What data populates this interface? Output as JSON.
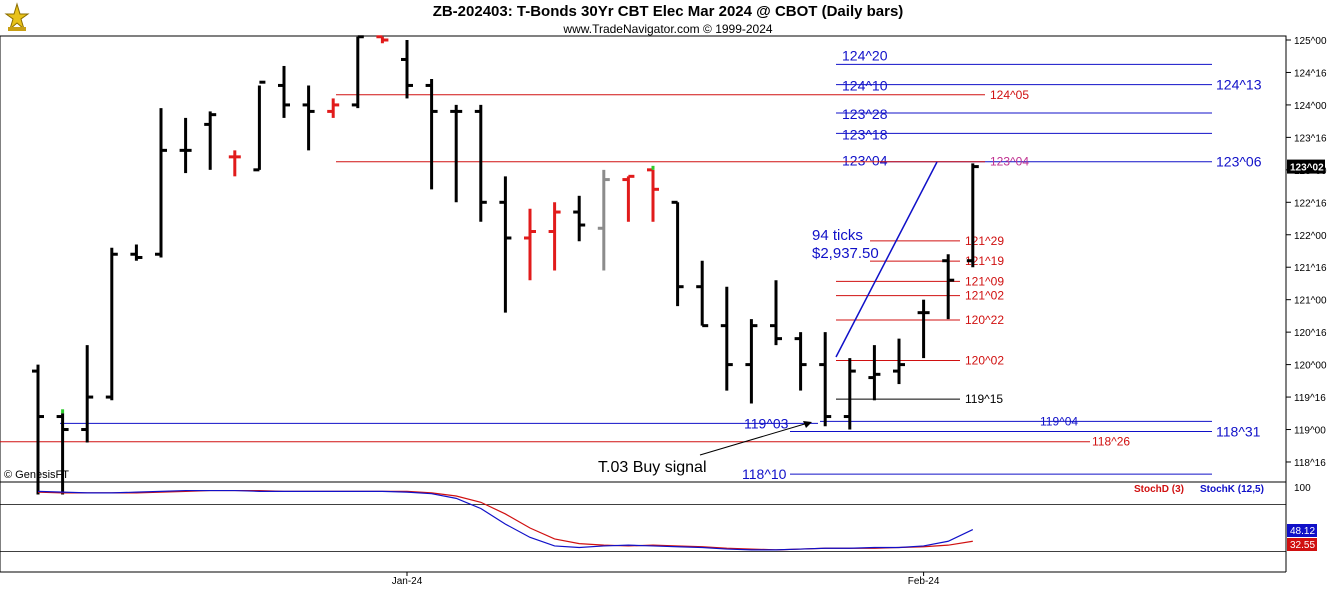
{
  "header": {
    "title": "ZB-202403:  T-Bonds 30Yr CBT Elec Mar 2024 @ CBOT  (Daily bars)",
    "subtitle": "www.TradeNavigator.com © 1999-2024"
  },
  "credit": "© GenesisFT",
  "colors": {
    "bar_default": "#000000",
    "bar_red": "#e11b1b",
    "bar_gray": "#8c8c8c",
    "bar_green": "#2ecc2e",
    "blue_level": "#1010c8",
    "red_level": "#d01010",
    "stoch_d": "#d01010",
    "stoch_k": "#1010c8",
    "price_tag_bg": "#000000",
    "k_tag_bg": "#1010c8",
    "d_tag_bg": "#d01010"
  },
  "chart_data": {
    "type": "ohlc",
    "price_axis_ticks": [
      "125^00",
      "124^16",
      "124^00",
      "123^16",
      "123^00",
      "122^16",
      "122^00",
      "121^16",
      "121^00",
      "120^16",
      "120^00",
      "119^16",
      "119^00",
      "118^16"
    ],
    "ylim": [
      118.0,
      125.0625
    ],
    "last_price_label": "123^02",
    "x_labels": [
      {
        "label": "Jan-24",
        "bar": 15
      },
      {
        "label": "Feb-24",
        "bar": 36
      }
    ],
    "bars": [
      {
        "h": 120.0,
        "l": 118.0,
        "o": 119.9,
        "c": 119.2,
        "color": "default"
      },
      {
        "h": 119.25,
        "l": 118.0,
        "o": 119.2,
        "c": 119.0,
        "color": "default",
        "marker": "green"
      },
      {
        "h": 120.3,
        "l": 118.8,
        "o": 119.0,
        "c": 119.5,
        "color": "default"
      },
      {
        "h": 121.8,
        "l": 119.45,
        "o": 119.5,
        "c": 121.7,
        "color": "default"
      },
      {
        "h": 121.85,
        "l": 121.6,
        "o": 121.7,
        "c": 121.65,
        "color": "default"
      },
      {
        "h": 123.95,
        "l": 121.65,
        "o": 121.7,
        "c": 123.3,
        "color": "default"
      },
      {
        "h": 123.8,
        "l": 122.95,
        "o": 123.3,
        "c": 123.3,
        "color": "default"
      },
      {
        "h": 123.9,
        "l": 123.0,
        "o": 123.7,
        "c": 123.85,
        "color": "default"
      },
      {
        "h": 123.3,
        "l": 122.9,
        "o": 123.2,
        "c": 123.2,
        "color": "red"
      },
      {
        "h": 124.3,
        "l": 123.0,
        "o": 123.0,
        "c": 124.35,
        "color": "default"
      },
      {
        "h": 124.6,
        "l": 123.8,
        "o": 124.3,
        "c": 124.0,
        "color": "default"
      },
      {
        "h": 124.3,
        "l": 123.3,
        "o": 124.0,
        "c": 123.9,
        "color": "default"
      },
      {
        "h": 124.1,
        "l": 123.8,
        "o": 123.9,
        "c": 124.0,
        "color": "red"
      },
      {
        "h": 125.05,
        "l": 123.95,
        "o": 124.0,
        "c": 125.05,
        "color": "default"
      },
      {
        "h": 125.05,
        "l": 124.95,
        "o": 125.05,
        "c": 125.0,
        "color": "red"
      },
      {
        "h": 125.0,
        "l": 124.1,
        "o": 124.7,
        "c": 124.3,
        "color": "default"
      },
      {
        "h": 124.4,
        "l": 122.7,
        "o": 124.3,
        "c": 123.9,
        "color": "default"
      },
      {
        "h": 124.0,
        "l": 122.5,
        "o": 123.9,
        "c": 123.9,
        "color": "default"
      },
      {
        "h": 124.0,
        "l": 122.2,
        "o": 123.9,
        "c": 122.5,
        "color": "default"
      },
      {
        "h": 122.9,
        "l": 120.8,
        "o": 122.5,
        "c": 121.95,
        "color": "default"
      },
      {
        "h": 122.4,
        "l": 121.3,
        "o": 121.95,
        "c": 122.05,
        "color": "red"
      },
      {
        "h": 122.5,
        "l": 121.45,
        "o": 122.05,
        "c": 122.35,
        "color": "red"
      },
      {
        "h": 122.6,
        "l": 121.9,
        "o": 122.35,
        "c": 122.15,
        "color": "default"
      },
      {
        "h": 123.0,
        "l": 121.45,
        "o": 122.1,
        "c": 122.85,
        "color": "gray"
      },
      {
        "h": 122.9,
        "l": 122.2,
        "o": 122.85,
        "c": 122.9,
        "color": "red"
      },
      {
        "h": 123.0,
        "l": 122.2,
        "o": 123.0,
        "c": 122.7,
        "color": "red",
        "marker": "green"
      },
      {
        "h": 122.5,
        "l": 120.9,
        "o": 122.5,
        "c": 121.2,
        "color": "default"
      },
      {
        "h": 121.6,
        "l": 120.6,
        "o": 121.2,
        "c": 120.6,
        "color": "default"
      },
      {
        "h": 121.2,
        "l": 119.6,
        "o": 120.6,
        "c": 120.0,
        "color": "default"
      },
      {
        "h": 120.7,
        "l": 119.4,
        "o": 120.0,
        "c": 120.6,
        "color": "default"
      },
      {
        "h": 121.3,
        "l": 120.3,
        "o": 120.6,
        "c": 120.4,
        "color": "default"
      },
      {
        "h": 120.5,
        "l": 119.6,
        "o": 120.4,
        "c": 120.0,
        "color": "default"
      },
      {
        "h": 120.5,
        "l": 119.05,
        "o": 120.0,
        "c": 119.2,
        "color": "default"
      },
      {
        "h": 120.1,
        "l": 119.0,
        "o": 119.2,
        "c": 119.9,
        "color": "default"
      },
      {
        "h": 120.3,
        "l": 119.45,
        "o": 119.8,
        "c": 119.85,
        "color": "default"
      },
      {
        "h": 120.4,
        "l": 119.7,
        "o": 119.9,
        "c": 120.0,
        "color": "default"
      },
      {
        "h": 121.0,
        "l": 120.1,
        "o": 120.8,
        "c": 120.8,
        "color": "default"
      },
      {
        "h": 121.7,
        "l": 120.7,
        "o": 121.6,
        "c": 121.3,
        "color": "default"
      },
      {
        "h": 123.1,
        "l": 121.5,
        "o": 121.6,
        "c": 123.05,
        "color": "default"
      }
    ],
    "levels": [
      {
        "price": 124.625,
        "color": "blue",
        "label": "124^20",
        "right_label": ""
      },
      {
        "price": 124.3125,
        "color": "blue",
        "label": "124^10",
        "right_label": "124^13"
      },
      {
        "price": 124.15625,
        "color": "red",
        "label": "124^05",
        "right_label": ""
      },
      {
        "price": 123.875,
        "color": "blue",
        "label": "123^28",
        "right_label": ""
      },
      {
        "price": 123.5625,
        "color": "blue",
        "label": "123^18",
        "right_label": ""
      },
      {
        "price": 123.125,
        "color": "blue",
        "label": "123^04",
        "right_label": "123^06"
      },
      {
        "price": 123.125,
        "color": "red",
        "label": "123^04",
        "right_label": ""
      },
      {
        "price": 121.90625,
        "color": "red",
        "label": "121^29",
        "right_label": ""
      },
      {
        "price": 121.59375,
        "color": "red",
        "label": "121^19",
        "right_label": ""
      },
      {
        "price": 121.28125,
        "color": "red",
        "label": "121^09",
        "right_label": ""
      },
      {
        "price": 121.0625,
        "color": "red",
        "label": "121^02",
        "right_label": ""
      },
      {
        "price": 120.6875,
        "color": "red",
        "label": "120^22",
        "right_label": ""
      },
      {
        "price": 120.0625,
        "color": "red",
        "label": "120^02",
        "right_label": ""
      },
      {
        "price": 119.46875,
        "color": "black",
        "label": "119^15",
        "right_label": ""
      },
      {
        "price": 119.09375,
        "color": "blue",
        "label": "119^03",
        "right_label": ""
      },
      {
        "price": 119.125,
        "color": "blue",
        "label": "119^04",
        "right_label": ""
      },
      {
        "price": 118.96875,
        "color": "blue",
        "label": "118^31",
        "right_label": "118^31"
      },
      {
        "price": 118.8125,
        "color": "red",
        "label": "118^26",
        "right_label": ""
      },
      {
        "price": 118.3125,
        "color": "blue",
        "label": "118^10",
        "right_label": ""
      }
    ],
    "annotations": {
      "ticks_label": "94 ticks",
      "dollar_label": "$2,937.50",
      "buy_signal": "T.03 Buy signal"
    },
    "stochastic": {
      "d_label": "StochD (3)",
      "k_label": "StochK (12,5)",
      "scale_top": "100",
      "k_last": "48.12",
      "d_last": "32.55",
      "upper_band": 80,
      "lower_band": 20,
      "k_values": [
        97,
        96,
        95,
        95,
        96,
        97,
        98,
        98,
        98,
        97,
        97,
        97,
        97,
        97,
        97,
        96,
        94,
        88,
        75,
        55,
        38,
        27,
        25,
        27,
        28,
        27,
        26,
        25,
        23,
        22,
        22,
        23,
        24,
        24,
        25,
        25,
        27,
        33,
        48
      ],
      "d_values": [
        96,
        95,
        95,
        95,
        95,
        96,
        97,
        98,
        98,
        98,
        97,
        97,
        97,
        97,
        97,
        97,
        95,
        91,
        83,
        68,
        50,
        36,
        30,
        28,
        27,
        28,
        27,
        26,
        24,
        23,
        22,
        23,
        24,
        24,
        24,
        25,
        26,
        28,
        33
      ]
    }
  }
}
